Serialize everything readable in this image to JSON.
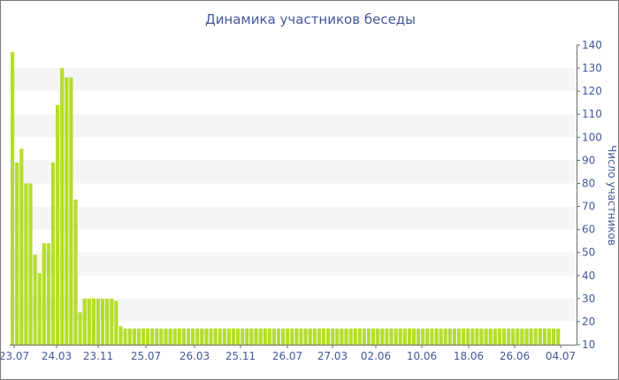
{
  "chart_data": {
    "type": "bar",
    "title": "Динамика участников беседы",
    "ylabel": "Число участников",
    "xlabel": "",
    "ylim": [
      10,
      140
    ],
    "yticks": [
      10,
      20,
      30,
      40,
      50,
      60,
      70,
      80,
      90,
      100,
      110,
      120,
      130,
      140
    ],
    "xtick_labels": [
      "23.07",
      "24.03",
      "23.11",
      "25.07",
      "26.03",
      "25.11",
      "26.07",
      "27.03",
      "02.06",
      "10.06",
      "18.06",
      "26.06",
      "04.07"
    ],
    "y_axis_position": "right",
    "grid": "alternating horizontal bands",
    "legend": "none",
    "bar_color": "#b5dd2c",
    "band_color": "#f5f5f5",
    "text_color": "#44589a",
    "values": [
      137,
      89,
      95,
      80,
      80,
      49,
      41,
      54,
      54,
      89,
      114,
      130,
      126,
      126,
      73,
      24,
      30,
      30,
      30,
      30,
      30,
      30,
      30,
      29,
      18,
      17,
      17,
      17,
      17,
      17,
      17,
      17,
      17,
      17,
      17,
      17,
      17,
      17,
      17,
      17,
      17,
      17,
      17,
      17,
      17,
      17,
      17,
      17,
      17,
      17,
      17,
      17,
      17,
      17,
      17,
      17,
      17,
      17,
      17,
      17,
      17,
      17,
      17,
      17,
      17,
      17,
      17,
      17,
      17,
      17,
      17,
      17,
      17,
      17,
      17,
      17,
      17,
      17,
      17,
      17,
      17,
      17,
      17,
      17,
      17,
      17,
      17,
      17,
      17,
      17,
      17,
      17,
      17,
      17,
      17,
      17,
      17,
      17,
      17,
      17,
      17,
      17,
      17,
      17,
      17,
      17,
      17,
      17,
      17,
      17,
      17,
      17,
      17,
      17,
      17,
      17,
      17,
      17,
      17,
      17,
      17,
      17
    ]
  }
}
